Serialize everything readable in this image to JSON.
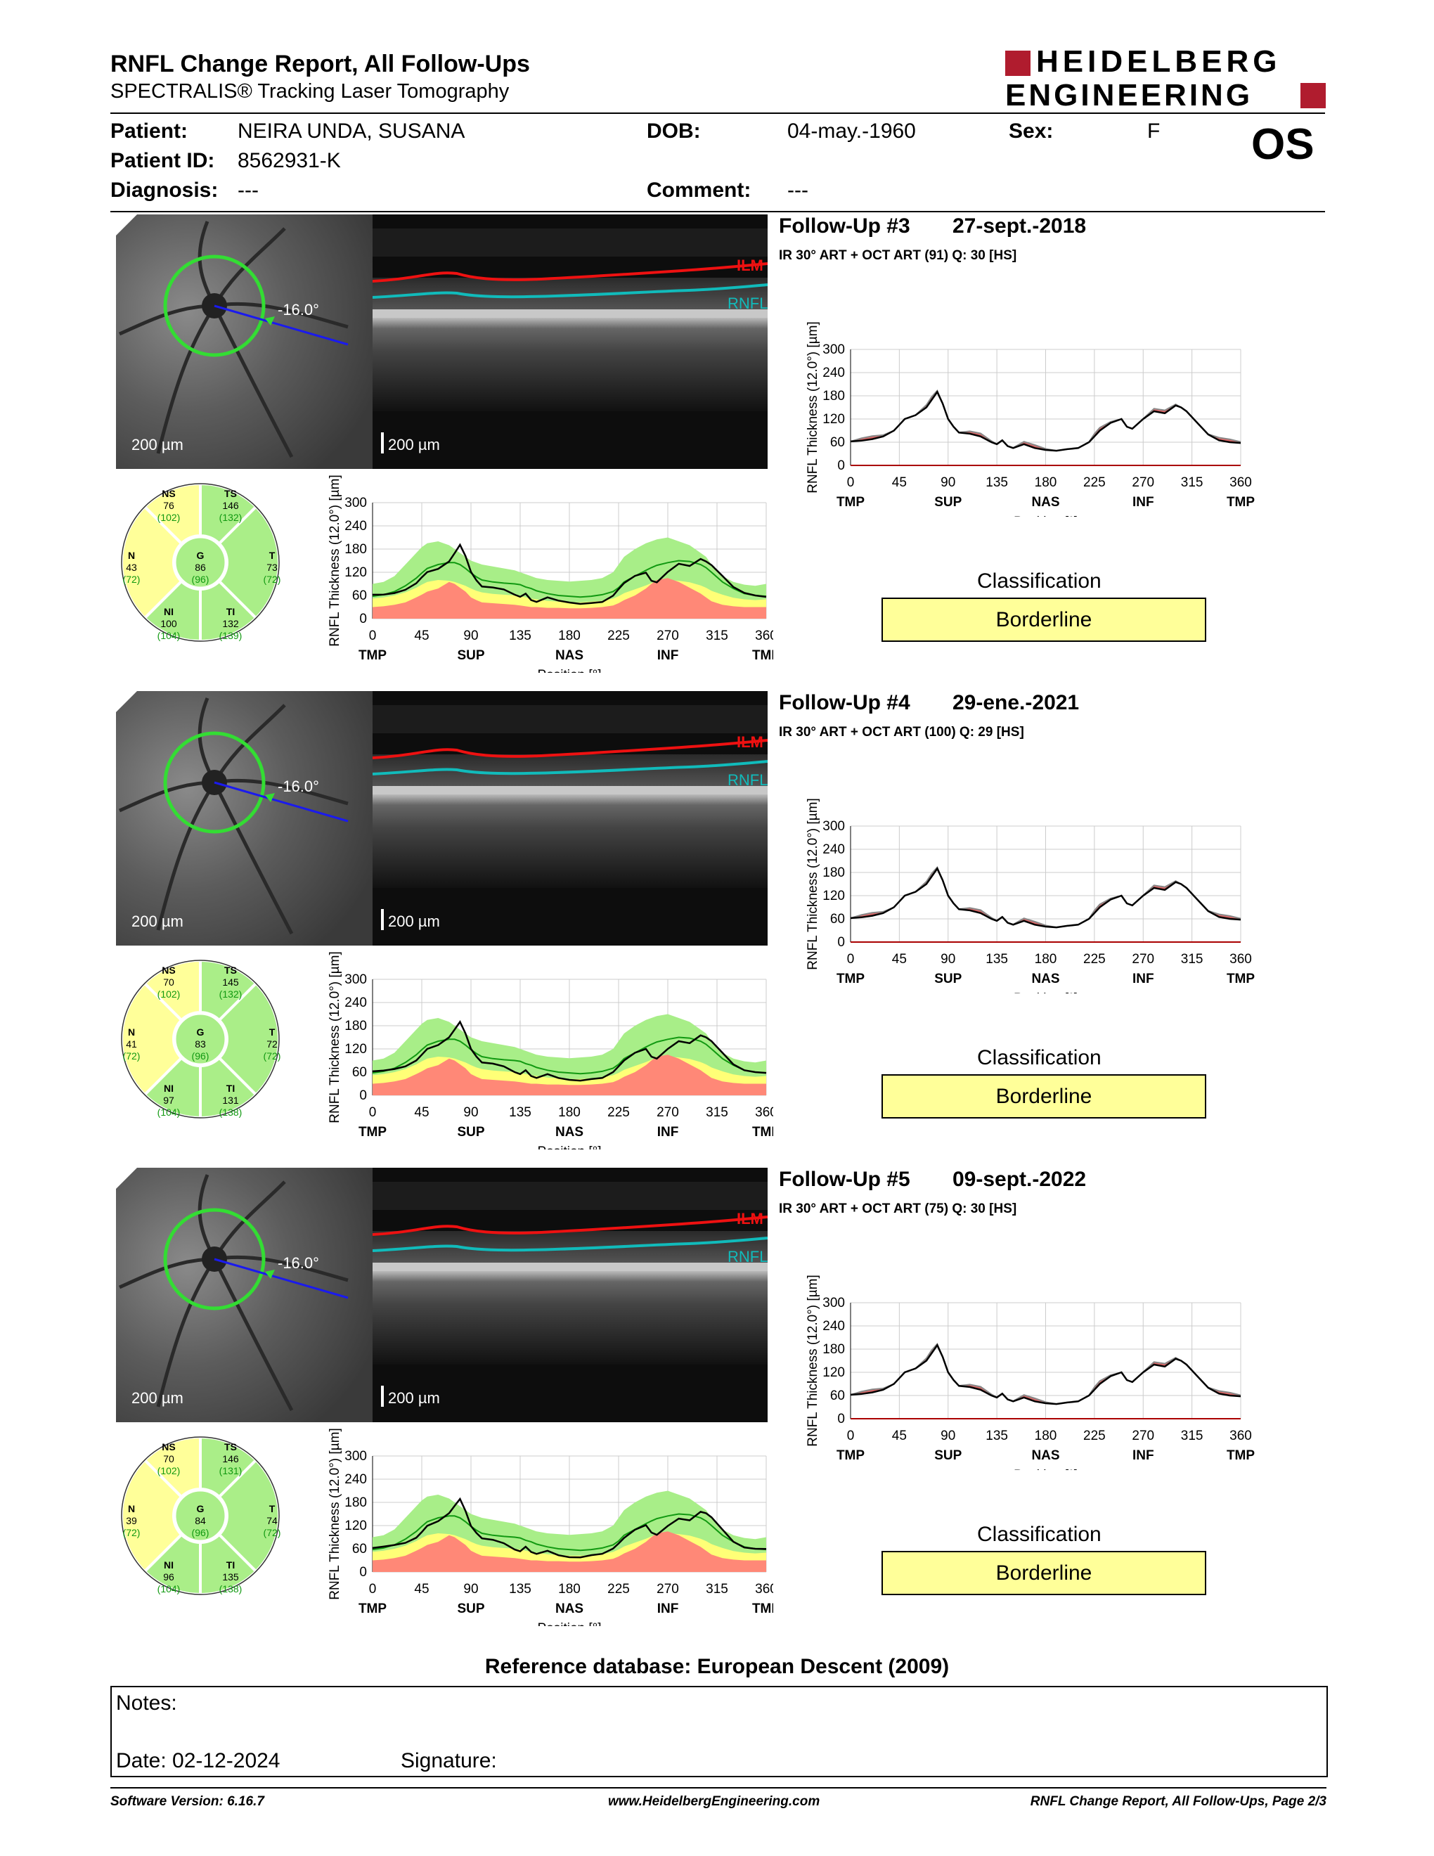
{
  "header": {
    "title": "RNFL Change Report, All Follow-Ups",
    "subtitle": "SPECTRALIS® Tracking Laser Tomography",
    "logo_line1": "HEIDELBERG",
    "logo_line2": "ENGINEERING",
    "eye": "OS"
  },
  "patient": {
    "patient_label": "Patient:",
    "patient_value": "NEIRA UNDA, SUSANA",
    "id_label": "Patient ID:",
    "id_value": "8562931-K",
    "diagnosis_label": "Diagnosis:",
    "diagnosis_value": "---",
    "dob_label": "DOB:",
    "dob_value": "04-may.-1960",
    "comment_label": "Comment:",
    "comment_value": "---",
    "sex_label": "Sex:",
    "sex_value": "F"
  },
  "common": {
    "scale_label": "200 µm",
    "ilm_label": "ILM",
    "rnfl_label": "RNFL",
    "angle_label": "-16.0°",
    "y_axis_label": "RNFL Thickness (12.0°) [µm]",
    "x_axis_label": "Position [°]",
    "y_ticks": [
      "300",
      "240",
      "180",
      "120",
      "60",
      "0"
    ],
    "x_ticks": [
      "0",
      "45",
      "90",
      "135",
      "180",
      "225",
      "270",
      "315",
      "360"
    ],
    "x_regions": [
      "TMP",
      "SUP",
      "NAS",
      "INF",
      "TMP"
    ],
    "classification_label": "Classification"
  },
  "followups": [
    {
      "title": "Follow-Up #3",
      "date": "27-sept.-2018",
      "scan_info": "IR 30° ART + OCT ART (91) Q: 30 [HS]",
      "classification": "Borderline",
      "sectors": {
        "NS": {
          "label": "NS",
          "value": "76",
          "normal": "(102)"
        },
        "TS": {
          "label": "TS",
          "value": "146",
          "normal": "(132)"
        },
        "N": {
          "label": "N",
          "value": "43",
          "normal": "(72)"
        },
        "G": {
          "label": "G",
          "value": "86",
          "normal": "(96)"
        },
        "T": {
          "label": "T",
          "value": "73",
          "normal": "(72)"
        },
        "NI": {
          "label": "NI",
          "value": "100",
          "normal": "(104)"
        },
        "TI": {
          "label": "TI",
          "value": "132",
          "normal": "(139)"
        }
      }
    },
    {
      "title": "Follow-Up #4",
      "date": "29-ene.-2021",
      "scan_info": "IR 30° ART + OCT ART (100) Q: 29 [HS]",
      "classification": "Borderline",
      "sectors": {
        "NS": {
          "label": "NS",
          "value": "70",
          "normal": "(102)"
        },
        "TS": {
          "label": "TS",
          "value": "145",
          "normal": "(132)"
        },
        "N": {
          "label": "N",
          "value": "41",
          "normal": "(72)"
        },
        "G": {
          "label": "G",
          "value": "83",
          "normal": "(96)"
        },
        "T": {
          "label": "T",
          "value": "72",
          "normal": "(72)"
        },
        "NI": {
          "label": "NI",
          "value": "97",
          "normal": "(104)"
        },
        "TI": {
          "label": "TI",
          "value": "131",
          "normal": "(138)"
        }
      }
    },
    {
      "title": "Follow-Up #5",
      "date": "09-sept.-2022",
      "scan_info": "IR 30° ART + OCT ART (75) Q: 30 [HS]",
      "classification": "Borderline",
      "sectors": {
        "NS": {
          "label": "NS",
          "value": "70",
          "normal": "(102)"
        },
        "TS": {
          "label": "TS",
          "value": "146",
          "normal": "(131)"
        },
        "N": {
          "label": "N",
          "value": "39",
          "normal": "(72)"
        },
        "G": {
          "label": "G",
          "value": "84",
          "normal": "(96)"
        },
        "T": {
          "label": "T",
          "value": "74",
          "normal": "(72)"
        },
        "NI": {
          "label": "NI",
          "value": "96",
          "normal": "(104)"
        },
        "TI": {
          "label": "TI",
          "value": "135",
          "normal": "(138)"
        }
      }
    }
  ],
  "chart_data": {
    "type": "line",
    "xlim": [
      0,
      360
    ],
    "ylim": [
      0,
      300
    ],
    "x": [
      0,
      10,
      20,
      30,
      40,
      45,
      50,
      60,
      70,
      75,
      80,
      85,
      90,
      95,
      100,
      110,
      120,
      130,
      135,
      140,
      145,
      150,
      160,
      170,
      180,
      190,
      200,
      210,
      220,
      225,
      230,
      240,
      250,
      255,
      260,
      270,
      280,
      290,
      300,
      305,
      310,
      320,
      330,
      340,
      350,
      360
    ],
    "series": [
      {
        "values": [
          62,
          64,
          68,
          75,
          90,
          105,
          120,
          130,
          150,
          170,
          190,
          160,
          120,
          100,
          85,
          82,
          75,
          60,
          55,
          65,
          50,
          45,
          55,
          45,
          40,
          38,
          42,
          45,
          60,
          75,
          90,
          110,
          120,
          100,
          95,
          120,
          140,
          135,
          155,
          150,
          140,
          110,
          80,
          65,
          60,
          58
        ]
      }
    ],
    "band_normal_upper": [
      90,
      95,
      110,
      140,
      170,
      185,
      195,
      200,
      190,
      180,
      170,
      160,
      150,
      145,
      140,
      135,
      130,
      125,
      120,
      115,
      110,
      105,
      100,
      98,
      96,
      98,
      100,
      105,
      120,
      140,
      160,
      180,
      195,
      200,
      205,
      210,
      200,
      190,
      170,
      160,
      140,
      110,
      95,
      88,
      85,
      90
    ],
    "band_normal_mean": [
      58,
      62,
      70,
      85,
      105,
      118,
      130,
      140,
      145,
      145,
      140,
      130,
      118,
      108,
      100,
      95,
      92,
      90,
      88,
      82,
      78,
      72,
      65,
      60,
      58,
      56,
      58,
      62,
      70,
      80,
      95,
      110,
      125,
      132,
      138,
      145,
      150,
      148,
      140,
      132,
      120,
      95,
      78,
      65,
      60,
      58
    ],
    "band_borderline": [
      52,
      55,
      60,
      68,
      80,
      88,
      95,
      100,
      98,
      95,
      90,
      85,
      78,
      72,
      68,
      64,
      62,
      60,
      58,
      55,
      52,
      50,
      46,
      44,
      42,
      42,
      44,
      46,
      52,
      58,
      66,
      76,
      86,
      92,
      96,
      100,
      98,
      94,
      86,
      80,
      72,
      62,
      54,
      50,
      48,
      50
    ],
    "band_outside": [
      30,
      32,
      36,
      42,
      55,
      62,
      70,
      78,
      95,
      90,
      80,
      70,
      55,
      48,
      42,
      40,
      38,
      36,
      34,
      32,
      30,
      30,
      28,
      28,
      27,
      27,
      28,
      30,
      34,
      40,
      48,
      60,
      78,
      90,
      100,
      105,
      95,
      80,
      65,
      55,
      45,
      36,
      32,
      30,
      30,
      30
    ]
  }
}
